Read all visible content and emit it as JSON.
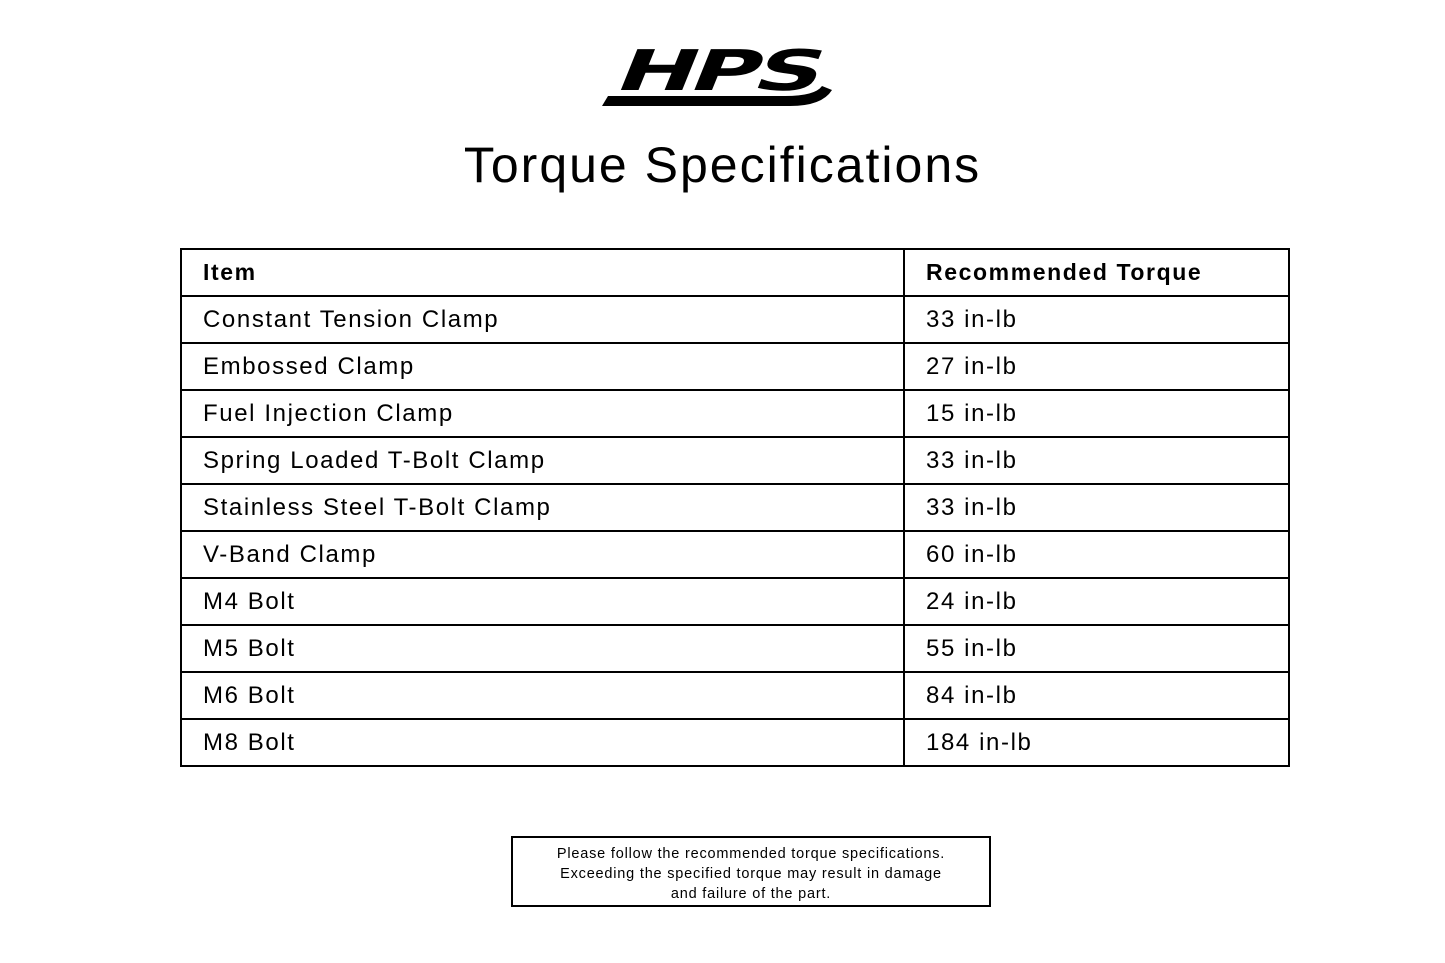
{
  "logo": {
    "text": "HPS"
  },
  "title": "Torque Specifications",
  "table": {
    "headers": [
      "Item",
      "Recommended Torque"
    ],
    "rows": [
      [
        "Constant Tension Clamp",
        "33 in-lb"
      ],
      [
        "Embossed Clamp",
        "27 in-lb"
      ],
      [
        "Fuel Injection Clamp",
        "15 in-lb"
      ],
      [
        "Spring Loaded T-Bolt Clamp",
        "33 in-lb"
      ],
      [
        "Stainless Steel T-Bolt Clamp",
        "33 in-lb"
      ],
      [
        "V-Band Clamp",
        "60 in-lb"
      ],
      [
        "M4 Bolt",
        "24 in-lb"
      ],
      [
        "M5 Bolt",
        "55 in-lb"
      ],
      [
        "M6 Bolt",
        "84 in-lb"
      ],
      [
        "M8 Bolt",
        "184 in-lb"
      ]
    ]
  },
  "note": {
    "lines": [
      "Please follow the recommended torque specifications.",
      "Exceeding the specified torque may result in damage",
      "and failure of the part."
    ]
  }
}
